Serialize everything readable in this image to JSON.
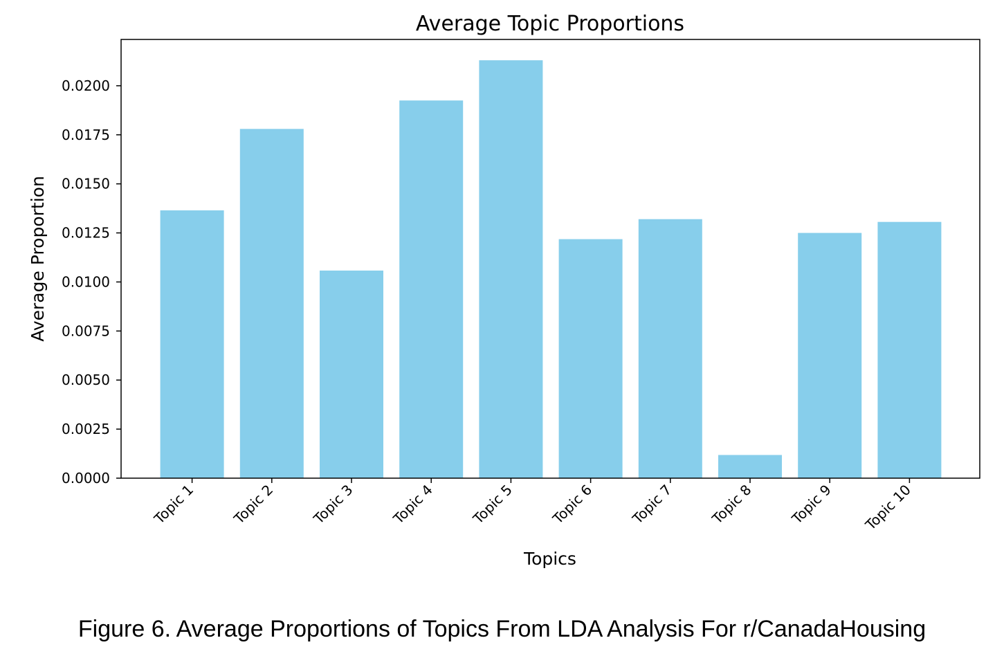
{
  "colors": {
    "bar": "#87ceeb",
    "axis": "#000000",
    "text": "#000000"
  },
  "chart_data": {
    "type": "bar",
    "title": "Average Topic Proportions",
    "xlabel": "Topics",
    "ylabel": "Average Proportion",
    "categories": [
      "Topic 1",
      "Topic 2",
      "Topic 3",
      "Topic 4",
      "Topic 5",
      "Topic 6",
      "Topic 7",
      "Topic 8",
      "Topic 9",
      "Topic 10"
    ],
    "values": [
      0.01365,
      0.0178,
      0.01058,
      0.01925,
      0.0213,
      0.01218,
      0.0132,
      0.00118,
      0.0125,
      0.01306
    ],
    "ylim": [
      0,
      0.02236
    ],
    "yticks": [
      0,
      0.0025,
      0.005,
      0.0075,
      0.01,
      0.0125,
      0.015,
      0.0175,
      0.02
    ],
    "ytick_labels": [
      "0.0000",
      "0.0025",
      "0.0050",
      "0.0075",
      "0.0100",
      "0.0125",
      "0.0150",
      "0.0175",
      "0.0200"
    ],
    "grid": false,
    "legend": "none"
  },
  "caption": "Figure 6. Average Proportions of Topics From LDA Analysis For r/CanadaHousing"
}
